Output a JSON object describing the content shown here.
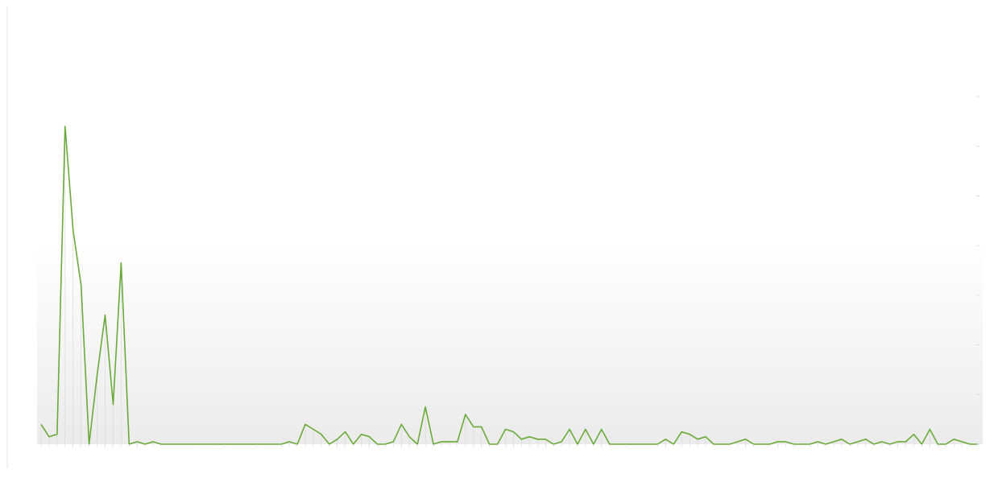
{
  "chart_data": {
    "type": "line",
    "title": "",
    "title_lines": [],
    "xlabel": "",
    "ylabel": "",
    "ylim": [
      0,
      700
    ],
    "yticks": [
      0,
      100,
      200,
      300,
      400,
      500,
      600,
      700
    ],
    "ytick_labels": [
      "",
      "",
      "",
      "",
      "",
      "",
      "",
      ""
    ],
    "grid": false,
    "legend": "none",
    "line_color": "#6aaa3a",
    "values": [
      40,
      15,
      20,
      640,
      430,
      320,
      0,
      140,
      260,
      80,
      365,
      0,
      5,
      0,
      5,
      0,
      0,
      0,
      0,
      0,
      0,
      0,
      0,
      0,
      0,
      0,
      0,
      0,
      0,
      0,
      0,
      5,
      0,
      40,
      30,
      20,
      0,
      10,
      25,
      0,
      20,
      15,
      0,
      0,
      5,
      40,
      15,
      0,
      75,
      0,
      5,
      5,
      5,
      60,
      35,
      35,
      0,
      0,
      30,
      25,
      10,
      15,
      10,
      10,
      0,
      5,
      30,
      0,
      30,
      0,
      30,
      0,
      0,
      0,
      0,
      0,
      0,
      0,
      10,
      0,
      25,
      20,
      10,
      15,
      0,
      0,
      0,
      5,
      10,
      0,
      0,
      0,
      5,
      5,
      0,
      0,
      0,
      5,
      0,
      5,
      10,
      0,
      5,
      10,
      0,
      5,
      0,
      5,
      5,
      20,
      0,
      30,
      0,
      0,
      10,
      5,
      0,
      0
    ]
  }
}
